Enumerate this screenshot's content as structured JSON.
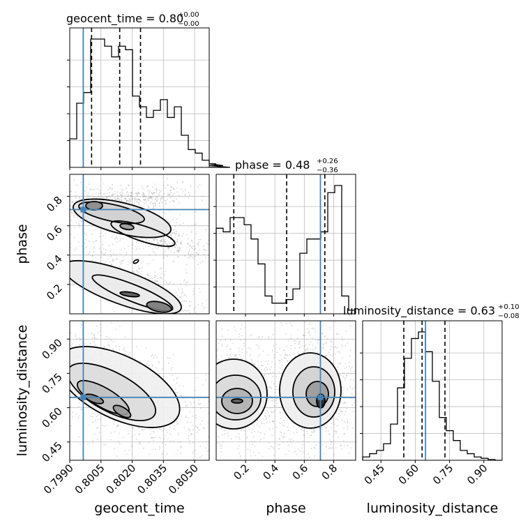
{
  "chart_data": {
    "type": "corner",
    "parameters": [
      "geocent_time",
      "phase",
      "luminosity_distance"
    ],
    "axis_labels": [
      "geocent_time",
      "phase",
      "luminosity_distance"
    ],
    "ranges": {
      "geocent_time": [
        0.799,
        0.8057
      ],
      "phase": [
        0.0,
        0.95
      ],
      "luminosity_distance": [
        0.37,
        0.98
      ]
    },
    "ticks": {
      "geocent_time": [
        "0.7990",
        "0.8005",
        "0.8020",
        "0.8035",
        "0.8050"
      ],
      "phase": [
        "0.2",
        "0.4",
        "0.6",
        "0.8"
      ],
      "luminosity_distance": [
        "0.45",
        "0.60",
        "0.75",
        "0.90"
      ]
    },
    "truths": {
      "geocent_time": 0.79965,
      "phase": 0.71,
      "luminosity_distance": 0.645
    },
    "quantiles": {
      "geocent_time": [
        0.80005,
        0.8014,
        0.8024
      ],
      "phase": [
        0.12,
        0.48,
        0.74
      ],
      "luminosity_distance": [
        0.55,
        0.63,
        0.73
      ]
    },
    "titles": {
      "geocent_time": {
        "label": "geocent_time = 0.80",
        "plus": "+0.00",
        "minus": "−0.00"
      },
      "phase": {
        "label": "phase = 0.48",
        "plus": "+0.26",
        "minus": "−0.36"
      },
      "luminosity_distance": {
        "label": "luminosity_distance = 0.63",
        "plus": "+0.10",
        "minus": "−0.08"
      }
    },
    "histograms": {
      "geocent_time": {
        "edges_start": 0.799,
        "bin_width": 0.000335,
        "counts": [
          8,
          18,
          21,
          36,
          36,
          34,
          31,
          34,
          33,
          20,
          17,
          14,
          16,
          19,
          14,
          17,
          9,
          5,
          4,
          2,
          1,
          1,
          0.5,
          0
        ]
      },
      "phase": {
        "edges_start": 0.0,
        "bin_width": 0.0475,
        "counts": [
          24,
          23,
          27,
          27,
          25,
          21,
          14,
          5,
          3,
          3,
          4,
          7,
          17,
          21,
          21,
          23,
          34,
          36,
          5,
          1
        ]
      },
      "luminosity_distance": {
        "edges_start": 0.37,
        "bin_width": 0.0305,
        "counts": [
          1,
          2,
          3,
          5,
          11,
          22,
          31,
          37,
          39,
          33,
          24,
          13,
          9,
          6,
          3,
          2,
          1,
          0.6,
          0.2,
          0
        ]
      }
    },
    "truth_color": "#4682b4",
    "quantile_style": "dashed",
    "grid": true
  }
}
